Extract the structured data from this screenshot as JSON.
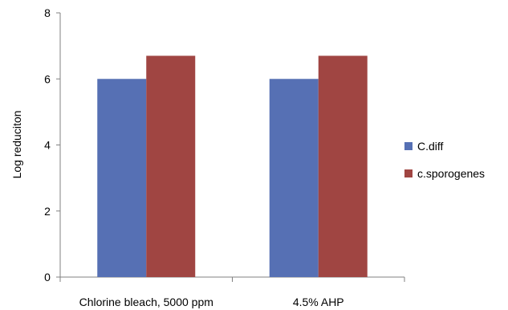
{
  "chart_data": {
    "type": "bar",
    "title": "",
    "xlabel": "",
    "ylabel": "Log reduciton",
    "categories": [
      "Chlorine bleach, 5000 ppm",
      "4.5% AHP"
    ],
    "series": [
      {
        "name": "C.diff",
        "values": [
          6.0,
          6.0
        ],
        "color": "#5670b4"
      },
      {
        "name": "c.sporogenes",
        "values": [
          6.7,
          6.7
        ],
        "color": "#a04542"
      }
    ],
    "ylim": [
      0,
      8
    ],
    "yticks": [
      0,
      2,
      4,
      6,
      8
    ],
    "grid": false,
    "legend_position": "right"
  }
}
